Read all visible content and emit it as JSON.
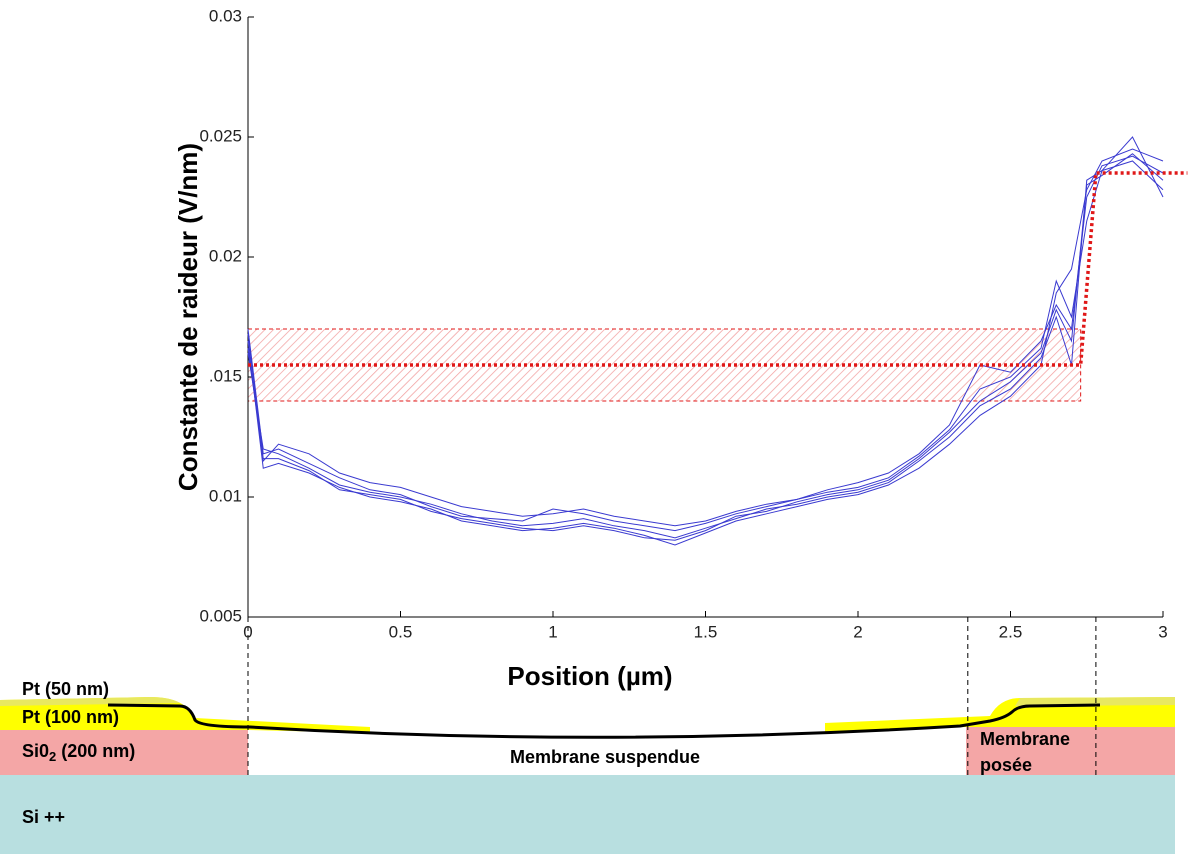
{
  "chart_data": {
    "type": "line",
    "ylabel": "Constante de raideur (V/nm)",
    "xlabel": "Position (µm)",
    "xlim": [
      0,
      3
    ],
    "ylim": [
      0.005,
      0.03
    ],
    "xticks": [
      0,
      0.5,
      1,
      1.5,
      2,
      2.5,
      3
    ],
    "yticks": [
      0.005,
      0.01,
      {
        "value": 0.015,
        "label": ".015"
      },
      0.02,
      0.025,
      0.03
    ],
    "x": [
      0,
      0.05,
      0.1,
      0.2,
      0.3,
      0.4,
      0.5,
      0.6,
      0.7,
      0.8,
      0.9,
      1.0,
      1.1,
      1.2,
      1.3,
      1.4,
      1.5,
      1.6,
      1.7,
      1.8,
      1.9,
      2.0,
      2.1,
      2.2,
      2.3,
      2.4,
      2.5,
      2.6,
      2.65,
      2.7,
      2.75,
      2.8,
      2.9,
      3.0
    ],
    "series": [
      {
        "color": "#3a3ad0",
        "values": [
          0.0168,
          0.0115,
          0.0122,
          0.0118,
          0.011,
          0.0106,
          0.0104,
          0.01,
          0.0096,
          0.0094,
          0.0092,
          0.0093,
          0.0095,
          0.0092,
          0.009,
          0.0088,
          0.009,
          0.0094,
          0.0097,
          0.0099,
          0.0103,
          0.0106,
          0.011,
          0.0118,
          0.013,
          0.0155,
          0.0152,
          0.0165,
          0.018,
          0.017,
          0.0225,
          0.0238,
          0.0242,
          0.0235
        ]
      },
      {
        "color": "#3a3ad0",
        "values": [
          0.016,
          0.012,
          0.0118,
          0.0112,
          0.0105,
          0.0102,
          0.01,
          0.0097,
          0.0093,
          0.009,
          0.0088,
          0.0089,
          0.0091,
          0.0088,
          0.0086,
          0.0083,
          0.0087,
          0.0091,
          0.0095,
          0.0097,
          0.01,
          0.0102,
          0.0106,
          0.0115,
          0.0125,
          0.0138,
          0.0145,
          0.0158,
          0.0175,
          0.0155,
          0.0232,
          0.0236,
          0.024,
          0.0228
        ]
      },
      {
        "color": "#3a3ad0",
        "values": [
          0.0165,
          0.0112,
          0.0114,
          0.011,
          0.0104,
          0.01,
          0.0098,
          0.0095,
          0.009,
          0.0088,
          0.0086,
          0.0087,
          0.0089,
          0.0087,
          0.0084,
          0.008,
          0.0085,
          0.009,
          0.0093,
          0.0096,
          0.0099,
          0.0101,
          0.0105,
          0.0112,
          0.0122,
          0.0134,
          0.0142,
          0.0155,
          0.0185,
          0.0195,
          0.0228,
          0.024,
          0.0245,
          0.024
        ]
      },
      {
        "color": "#3a3ad0",
        "values": [
          0.017,
          0.0118,
          0.012,
          0.0114,
          0.0108,
          0.0103,
          0.0101,
          0.0096,
          0.0092,
          0.0091,
          0.009,
          0.0095,
          0.0093,
          0.009,
          0.0088,
          0.0086,
          0.0089,
          0.0093,
          0.0096,
          0.0099,
          0.0102,
          0.0104,
          0.0108,
          0.0117,
          0.0128,
          0.0145,
          0.015,
          0.0162,
          0.019,
          0.0175,
          0.0215,
          0.0236,
          0.025,
          0.0225
        ]
      },
      {
        "color": "#3a3ad0",
        "values": [
          0.0162,
          0.0116,
          0.0116,
          0.0111,
          0.0103,
          0.0101,
          0.0099,
          0.0094,
          0.0091,
          0.0089,
          0.0087,
          0.0086,
          0.0088,
          0.0086,
          0.0083,
          0.0082,
          0.0086,
          0.0092,
          0.0094,
          0.0098,
          0.0101,
          0.0103,
          0.0107,
          0.0116,
          0.0127,
          0.014,
          0.0148,
          0.016,
          0.0178,
          0.0165,
          0.023,
          0.0234,
          0.0243,
          0.0232
        ]
      }
    ],
    "fit": {
      "color": "#e01818",
      "x": [
        0,
        2.73,
        2.78,
        3.08
      ],
      "y": [
        0.0155,
        0.0155,
        0.0235,
        0.0235
      ]
    },
    "band": {
      "color": "#e01818",
      "x": [
        0,
        2.73
      ],
      "y": [
        0.014,
        0.017
      ]
    },
    "guides": [
      0,
      2.36,
      2.78
    ]
  },
  "diagram": {
    "pt_top": "Pt (50 nm)",
    "pt_bottom": "Pt (100 nm)",
    "oxide": {
      "text": "Si0",
      "sub": "2",
      "rest": " (200 nm)"
    },
    "suspended": "Membrane suspendue",
    "landed": [
      "Membrane",
      "posée"
    ],
    "substrate": "Si ++"
  }
}
